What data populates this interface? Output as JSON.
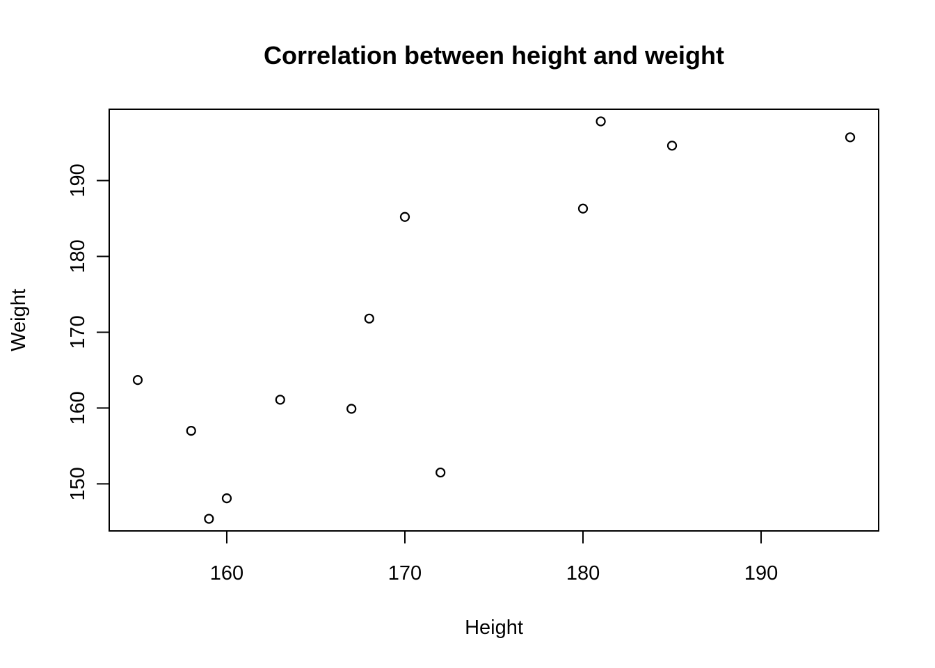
{
  "chart_data": {
    "type": "scatter",
    "title": "Correlation between height and weight",
    "xlabel": "Height",
    "ylabel": "Weight",
    "xlim": [
      153.4,
      196.6
    ],
    "ylim": [
      143.8,
      199.4
    ],
    "x_ticks": [
      160,
      170,
      180,
      190
    ],
    "y_ticks": [
      150,
      160,
      170,
      180,
      190
    ],
    "grid": false,
    "legend": "none",
    "marker": "open-circle",
    "series": [
      {
        "x": [
          155,
          158,
          159,
          160,
          163,
          167,
          168,
          170,
          172,
          180,
          181,
          185,
          195
        ],
        "y": [
          163.7,
          157.0,
          145.4,
          148.1,
          161.1,
          159.9,
          171.8,
          185.2,
          151.5,
          186.3,
          197.8,
          194.6,
          195.7
        ]
      }
    ]
  }
}
